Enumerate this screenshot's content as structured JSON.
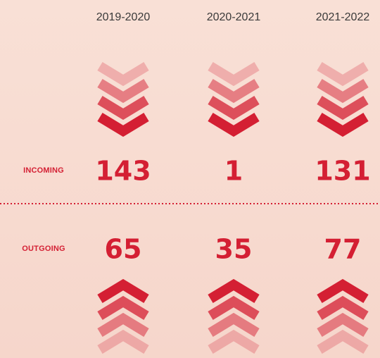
{
  "table": {
    "columns": [
      "2019-2020",
      "2020-2021",
      "2021-2022"
    ],
    "rows": [
      {
        "label": "INCOMING",
        "values": [
          143,
          1,
          131
        ]
      },
      {
        "label": "OUTGOING",
        "values": [
          65,
          35,
          77
        ]
      }
    ]
  }
}
